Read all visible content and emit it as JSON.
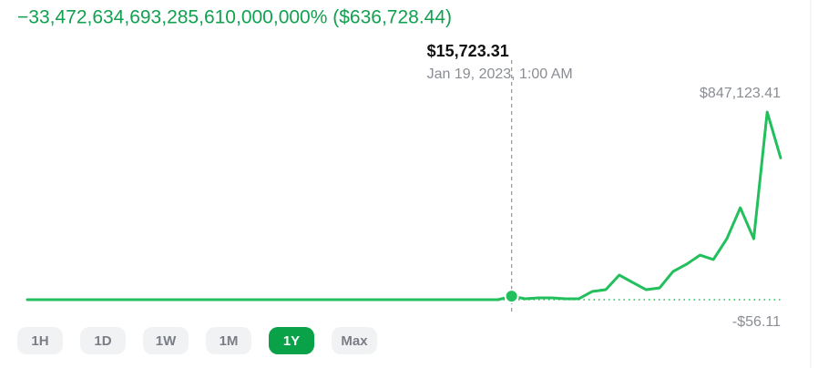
{
  "header": {
    "change": "−33,472,634,693,285,610,000,000% ($636,728.44)"
  },
  "chart_data": {
    "type": "line",
    "color": "#22bf5d",
    "values": [
      0,
      0,
      0,
      0,
      0,
      0,
      0,
      0,
      0,
      0,
      0,
      0,
      0,
      0,
      0,
      0,
      0,
      0,
      0,
      0,
      0,
      0,
      0,
      0,
      0,
      0,
      0,
      0,
      0,
      0,
      0,
      0,
      0,
      0,
      0,
      0,
      15723.31,
      4112,
      8224,
      8224,
      4112,
      4112,
      37000,
      45000,
      111000,
      78000,
      45000,
      53000,
      127000,
      160000,
      201000,
      181000,
      275000,
      415000,
      275000,
      847123.41,
      640000
    ],
    "extremes": {
      "values": [
        847123.41,
        -56.11
      ],
      "value_labels": [
        "$847,123.41",
        "-$56.11"
      ]
    },
    "hover": {
      "value": 15723.31,
      "label": "$15,723.31",
      "date": "Jan 19, 2023, 1:00 AM"
    }
  },
  "range_buttons": [
    "1H",
    "1D",
    "1W",
    "1M",
    "1Y",
    "Max"
  ],
  "selected_range": "1Y"
}
